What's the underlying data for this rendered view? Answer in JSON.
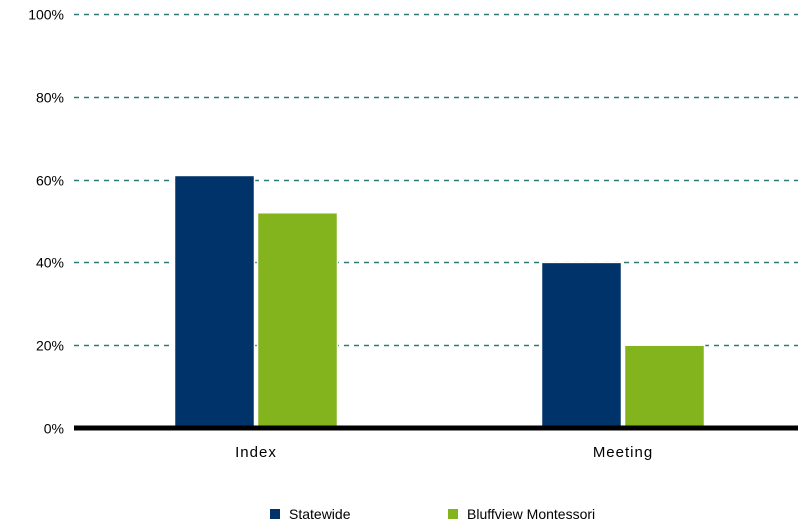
{
  "chart_data": {
    "type": "bar",
    "title": "",
    "xlabel": "",
    "ylabel": "",
    "categories": [
      "Index",
      "Meeting"
    ],
    "series": [
      {
        "name": "Statewide",
        "values": [
          61,
          40
        ],
        "color": "#00336a"
      },
      {
        "name": "Bluffview Montessori",
        "values": [
          52,
          20
        ],
        "color": "#84b41d"
      }
    ],
    "ylim": [
      0,
      100
    ],
    "y_ticks": [
      0,
      20,
      40,
      60,
      80,
      100
    ],
    "y_tick_labels": [
      "0%",
      "20%",
      "40%",
      "60%",
      "80%",
      "100%"
    ],
    "grid": true,
    "grid_color": "#2f7a78",
    "legend_position": "bottom"
  }
}
